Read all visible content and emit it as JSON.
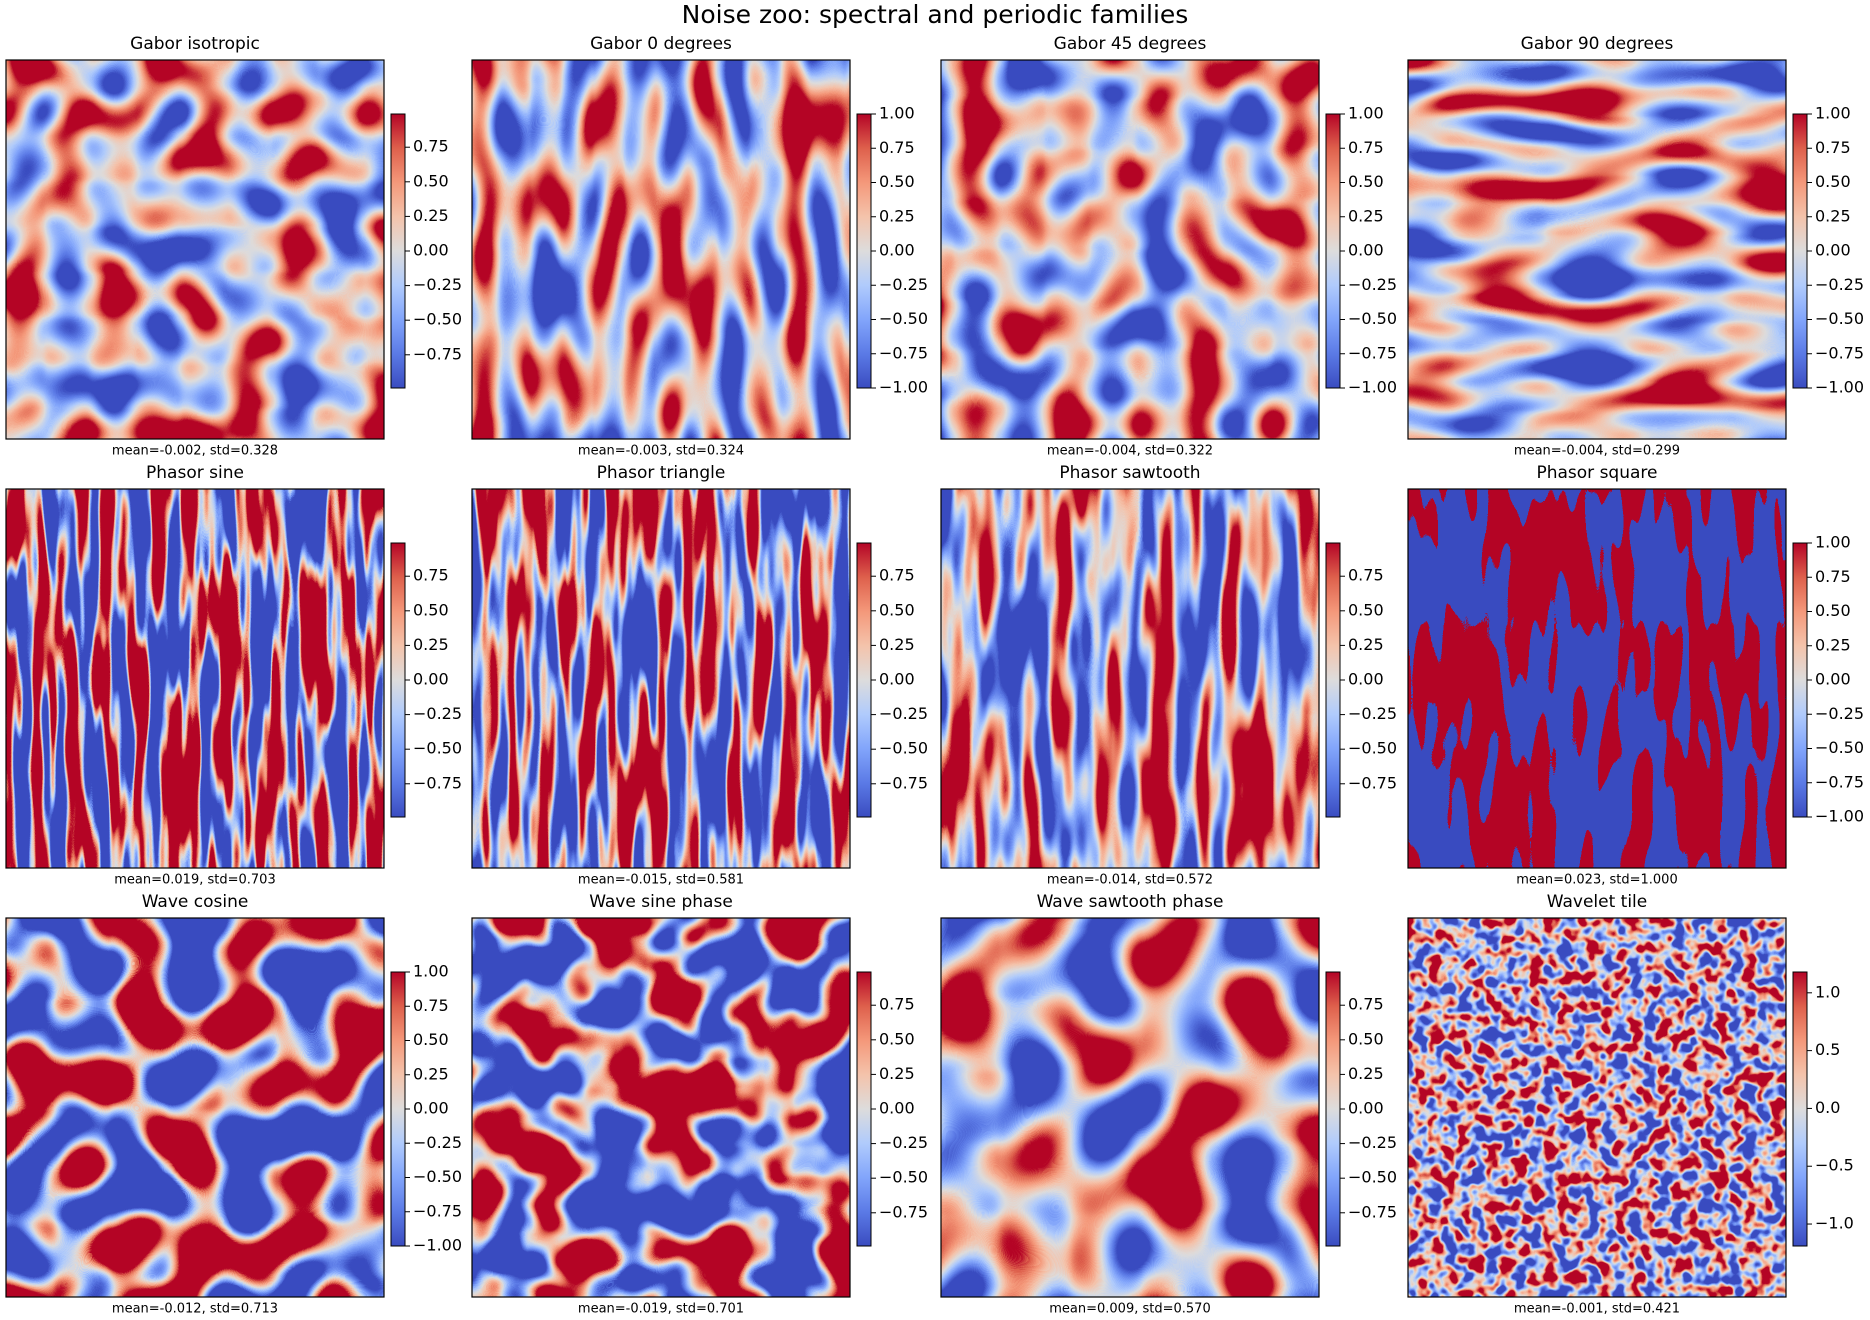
{
  "title": "Noise zoo: spectral and periodic families",
  "chart_data": [
    {
      "type": "heatmap",
      "title": "Gabor isotropic",
      "xlabel": "mean=-0.002, std=0.328",
      "clim": [
        -0.99,
        0.99
      ],
      "cticks": [
        0.75,
        {
          "value": 0.5,
          "label": "0.50"
        },
        0.25,
        {
          "value": 0,
          "label": "0.00"
        },
        {
          "value": -0.25,
          "label": "−0.25"
        },
        {
          "value": -0.5,
          "label": "−0.50"
        },
        {
          "value": -0.75,
          "label": "−0.75"
        }
      ]
    },
    {
      "type": "heatmap",
      "title": "Gabor 0 degrees",
      "xlabel": "mean=-0.003, std=0.324",
      "clim": [
        -1,
        1
      ],
      "cticks": [
        {
          "value": 1,
          "label": "1.00"
        },
        0.75,
        {
          "value": 0.5,
          "label": "0.50"
        },
        0.25,
        {
          "value": 0,
          "label": "0.00"
        },
        {
          "value": -0.25,
          "label": "−0.25"
        },
        {
          "value": -0.5,
          "label": "−0.50"
        },
        {
          "value": -0.75,
          "label": "−0.75"
        },
        {
          "value": -1,
          "label": "−1.00"
        }
      ]
    },
    {
      "type": "heatmap",
      "title": "Gabor 45 degrees",
      "xlabel": "mean=-0.004, std=0.322",
      "clim": [
        -1,
        1
      ],
      "cticks": [
        {
          "value": 1,
          "label": "1.00"
        },
        0.75,
        {
          "value": 0.5,
          "label": "0.50"
        },
        0.25,
        {
          "value": 0,
          "label": "0.00"
        },
        {
          "value": -0.25,
          "label": "−0.25"
        },
        {
          "value": -0.5,
          "label": "−0.50"
        },
        {
          "value": -0.75,
          "label": "−0.75"
        },
        {
          "value": -1,
          "label": "−1.00"
        }
      ]
    },
    {
      "type": "heatmap",
      "title": "Gabor 90 degrees",
      "xlabel": "mean=-0.004, std=0.299",
      "clim": [
        -1,
        1
      ],
      "cticks": [
        {
          "value": 1,
          "label": "1.00"
        },
        0.75,
        {
          "value": 0.5,
          "label": "0.50"
        },
        0.25,
        {
          "value": 0,
          "label": "0.00"
        },
        {
          "value": -0.25,
          "label": "−0.25"
        },
        {
          "value": -0.5,
          "label": "−0.50"
        },
        {
          "value": -0.75,
          "label": "−0.75"
        },
        {
          "value": -1,
          "label": "−1.00"
        }
      ]
    },
    {
      "type": "heatmap",
      "title": "Phasor sine",
      "xlabel": "mean=0.019, std=0.703",
      "clim": [
        -0.99,
        0.99
      ],
      "cticks": [
        0.75,
        {
          "value": 0.5,
          "label": "0.50"
        },
        0.25,
        {
          "value": 0,
          "label": "0.00"
        },
        {
          "value": -0.25,
          "label": "−0.25"
        },
        {
          "value": -0.5,
          "label": "−0.50"
        },
        {
          "value": -0.75,
          "label": "−0.75"
        }
      ]
    },
    {
      "type": "heatmap",
      "title": "Phasor triangle",
      "xlabel": "mean=-0.015, std=0.581",
      "clim": [
        -0.99,
        0.99
      ],
      "cticks": [
        0.75,
        {
          "value": 0.5,
          "label": "0.50"
        },
        0.25,
        {
          "value": 0,
          "label": "0.00"
        },
        {
          "value": -0.25,
          "label": "−0.25"
        },
        {
          "value": -0.5,
          "label": "−0.50"
        },
        {
          "value": -0.75,
          "label": "−0.75"
        }
      ]
    },
    {
      "type": "heatmap",
      "title": "Phasor sawtooth",
      "xlabel": "mean=-0.014, std=0.572",
      "clim": [
        -0.99,
        0.99
      ],
      "cticks": [
        0.75,
        {
          "value": 0.5,
          "label": "0.50"
        },
        0.25,
        {
          "value": 0,
          "label": "0.00"
        },
        {
          "value": -0.25,
          "label": "−0.25"
        },
        {
          "value": -0.5,
          "label": "−0.50"
        },
        {
          "value": -0.75,
          "label": "−0.75"
        }
      ]
    },
    {
      "type": "heatmap",
      "title": "Phasor square",
      "xlabel": "mean=0.023, std=1.000",
      "clim": [
        -1,
        1
      ],
      "cticks": [
        {
          "value": 1,
          "label": "1.00"
        },
        0.75,
        {
          "value": 0.5,
          "label": "0.50"
        },
        0.25,
        {
          "value": 0,
          "label": "0.00"
        },
        {
          "value": -0.25,
          "label": "−0.25"
        },
        {
          "value": -0.5,
          "label": "−0.50"
        },
        {
          "value": -0.75,
          "label": "−0.75"
        },
        {
          "value": -1,
          "label": "−1.00"
        }
      ]
    },
    {
      "type": "heatmap",
      "title": "Wave cosine",
      "xlabel": "mean=-0.012, std=0.713",
      "clim": [
        -1,
        1
      ],
      "cticks": [
        {
          "value": 1,
          "label": "1.00"
        },
        0.75,
        {
          "value": 0.5,
          "label": "0.50"
        },
        0.25,
        {
          "value": 0,
          "label": "0.00"
        },
        {
          "value": -0.25,
          "label": "−0.25"
        },
        {
          "value": -0.5,
          "label": "−0.50"
        },
        {
          "value": -0.75,
          "label": "−0.75"
        },
        {
          "value": -1,
          "label": "−1.00"
        }
      ]
    },
    {
      "type": "heatmap",
      "title": "Wave sine phase",
      "xlabel": "mean=-0.019, std=0.701",
      "clim": [
        -0.99,
        0.99
      ],
      "cticks": [
        0.75,
        {
          "value": 0.5,
          "label": "0.50"
        },
        0.25,
        {
          "value": 0,
          "label": "0.00"
        },
        {
          "value": -0.25,
          "label": "−0.25"
        },
        {
          "value": -0.5,
          "label": "−0.50"
        },
        {
          "value": -0.75,
          "label": "−0.75"
        }
      ]
    },
    {
      "type": "heatmap",
      "title": "Wave sawtooth phase",
      "xlabel": "mean=0.009, std=0.570",
      "clim": [
        -0.99,
        0.99
      ],
      "cticks": [
        0.75,
        {
          "value": 0.5,
          "label": "0.50"
        },
        0.25,
        {
          "value": 0,
          "label": "0.00"
        },
        {
          "value": -0.25,
          "label": "−0.25"
        },
        {
          "value": -0.5,
          "label": "−0.50"
        },
        {
          "value": -0.75,
          "label": "−0.75"
        }
      ]
    },
    {
      "type": "heatmap",
      "title": "Wavelet tile",
      "xlabel": "mean=-0.001, std=0.421",
      "clim": [
        -1.19,
        1.18
      ],
      "cticks": [
        {
          "value": 1,
          "label": "1.0"
        },
        0.5,
        {
          "value": 0,
          "label": "0.0"
        },
        {
          "value": -0.5,
          "label": "−0.5"
        },
        {
          "value": -1,
          "label": "−1.0"
        }
      ]
    }
  ]
}
